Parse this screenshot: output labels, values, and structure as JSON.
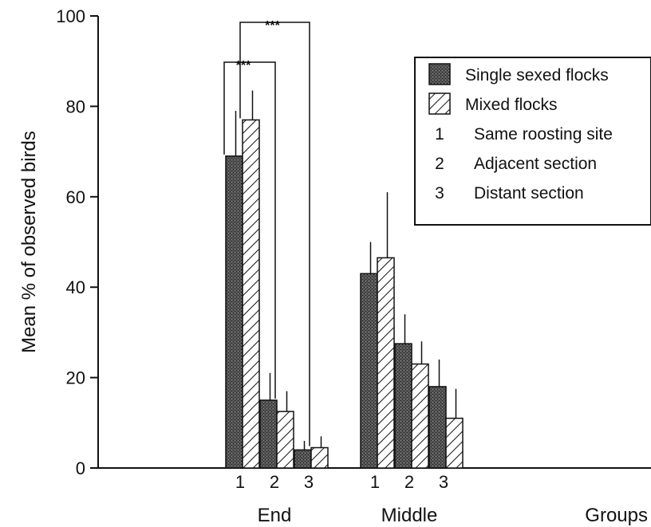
{
  "chart_data": {
    "type": "bar",
    "ylabel": "Mean % of observed birds",
    "xlabel": "Groups",
    "ylim": [
      0,
      100
    ],
    "yticks": [
      0,
      20,
      40,
      60,
      80,
      100
    ],
    "groups": [
      {
        "name": "End",
        "categories": [
          "1",
          "2",
          "3"
        ]
      },
      {
        "name": "Middle",
        "categories": [
          "1",
          "2",
          "3"
        ]
      }
    ],
    "series": [
      {
        "name": "Single sexed flocks",
        "pattern": "stippled-dark",
        "values": [
          [
            69,
            15,
            4
          ],
          [
            43,
            27.5,
            18
          ]
        ],
        "errors": [
          [
            10,
            6,
            2
          ],
          [
            7,
            6.5,
            6
          ]
        ]
      },
      {
        "name": "Mixed flocks",
        "pattern": "hatched",
        "values": [
          [
            77,
            12.5,
            4.5
          ],
          [
            46.5,
            23,
            11
          ]
        ],
        "errors": [
          [
            6.5,
            4.5,
            2.5
          ],
          [
            14.5,
            5,
            6.5
          ]
        ]
      }
    ],
    "legend": {
      "placement": "top-right",
      "entries": [
        {
          "marker": "stippled-dark",
          "label": "Single sexed flocks"
        },
        {
          "marker": "hatched",
          "label": "Mixed flocks"
        },
        {
          "marker": "1",
          "label": "Same roosting site"
        },
        {
          "marker": "2",
          "label": "Adjacent section"
        },
        {
          "marker": "3",
          "label": "Distant section"
        }
      ]
    },
    "significance": [
      {
        "group": "End",
        "from": "1",
        "to": "2",
        "label": "***"
      },
      {
        "group": "End",
        "from": "1",
        "to": "3",
        "label": "***"
      }
    ]
  }
}
